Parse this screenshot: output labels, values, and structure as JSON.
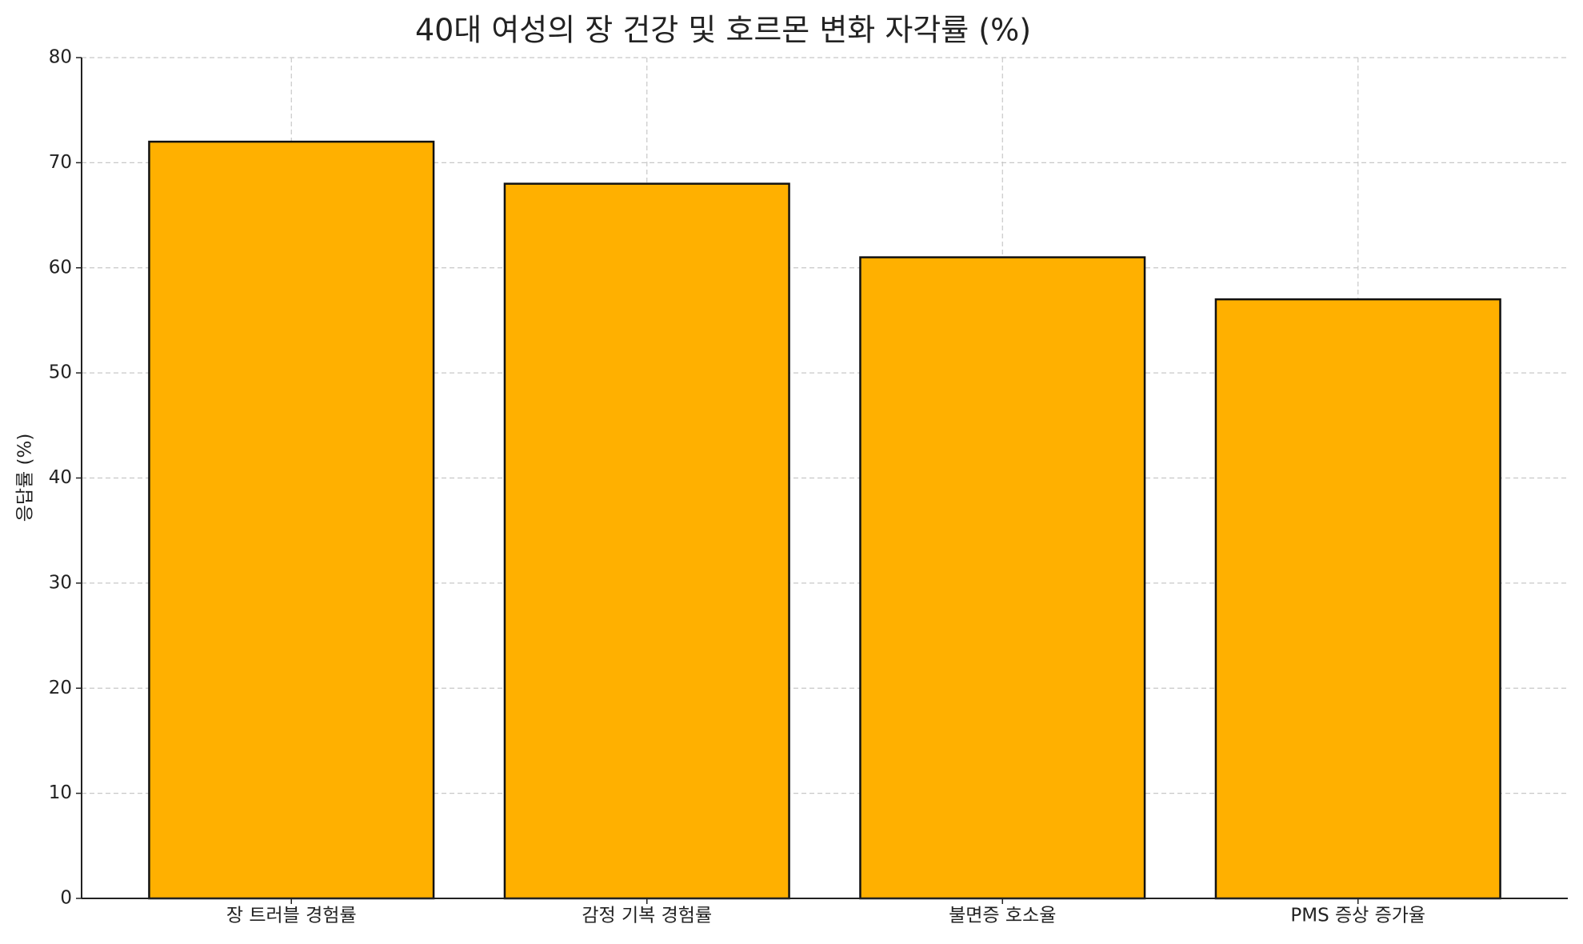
{
  "chart_data": {
    "type": "bar",
    "title": "40대 여성의 장 건강 및 호르몬 변화 자각률 (%)",
    "y_label": "응답률 (%)",
    "categories": [
      "장 트러블 경험률",
      "감정 기복 경험률",
      "불면증 호소율",
      "PMS 증상 증가율"
    ],
    "values": [
      72,
      68,
      61,
      57
    ],
    "color": "#ffb000",
    "ylim": [
      0,
      80
    ],
    "yticks": [
      0,
      10,
      20,
      30,
      40,
      50,
      60,
      70,
      80
    ],
    "grid": true
  }
}
